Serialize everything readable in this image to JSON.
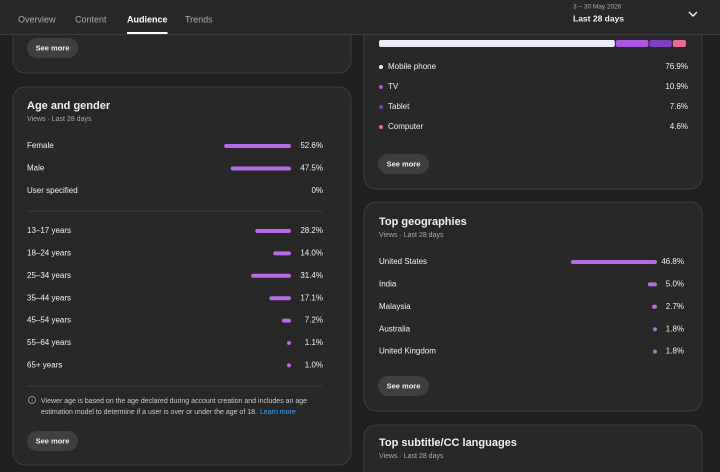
{
  "tabs": [
    "Overview",
    "Content",
    "Audience",
    "Trends"
  ],
  "active_tab": 2,
  "date_range": {
    "range": "3 – 30 May 2026",
    "label": "Last 28 days"
  },
  "top_card": {
    "button": "See more"
  },
  "age_gender": {
    "title": "Age and gender",
    "subtitle": "Views · Last 28 days",
    "bar_color": "#b56be6",
    "gender": [
      {
        "label": "Female",
        "value": 52.6,
        "value_label": "52.6%"
      },
      {
        "label": "Male",
        "value": 47.5,
        "value_label": "47.5%"
      },
      {
        "label": "User specified",
        "value": 0,
        "value_label": "0%"
      }
    ],
    "age": [
      {
        "label": "13–17 years",
        "value": 28.2,
        "value_label": "28.2%"
      },
      {
        "label": "18–24 years",
        "value": 14.0,
        "value_label": "14.0%"
      },
      {
        "label": "25–34 years",
        "value": 31.4,
        "value_label": "31.4%"
      },
      {
        "label": "35–44 years",
        "value": 17.1,
        "value_label": "17.1%"
      },
      {
        "label": "45–54 years",
        "value": 7.2,
        "value_label": "7.2%"
      },
      {
        "label": "55–64 years",
        "value": 1.1,
        "value_label": "1.1%"
      },
      {
        "label": "65+ years",
        "value": 1.0,
        "value_label": "1.0%"
      }
    ],
    "note": [
      "Viewer age is based on the age declared during account creation and includes an age",
      "estimation model to determine if a user is over or under the age of 18."
    ],
    "link": "Learn more",
    "button": "See more"
  },
  "devices": {
    "segments": [
      {
        "label": "Mobile phone",
        "value": 76.9,
        "value_label": "76.9%",
        "color": "#ececf4"
      },
      {
        "label": "TV",
        "value": 10.9,
        "value_label": "10.9%",
        "color": "#a957e0"
      },
      {
        "label": "Tablet",
        "value": 7.6,
        "value_label": "7.6%",
        "color": "#7e3fc0"
      },
      {
        "label": "Computer",
        "value": 4.6,
        "value_label": "4.6%",
        "color": "#e86a9a"
      }
    ],
    "button": "See more"
  },
  "geographies": {
    "title": "Top geographies",
    "subtitle": "Views · Last 28 days",
    "bar_color": "#b56be6",
    "rows": [
      {
        "label": "United States",
        "value": 46.8,
        "value_label": "46.8%"
      },
      {
        "label": "India",
        "value": 5.0,
        "value_label": "5.0%"
      },
      {
        "label": "Malaysia",
        "value": 2.7,
        "value_label": "2.7%"
      },
      {
        "label": "Australia",
        "value": 1.8,
        "value_label": "1.8%"
      },
      {
        "label": "United Kingdom",
        "value": 1.8,
        "value_label": "1.8%"
      }
    ],
    "button": "See more"
  },
  "subtitles": {
    "title": "Top subtitle/CC languages",
    "subtitle": "Views · Last 28 days"
  }
}
